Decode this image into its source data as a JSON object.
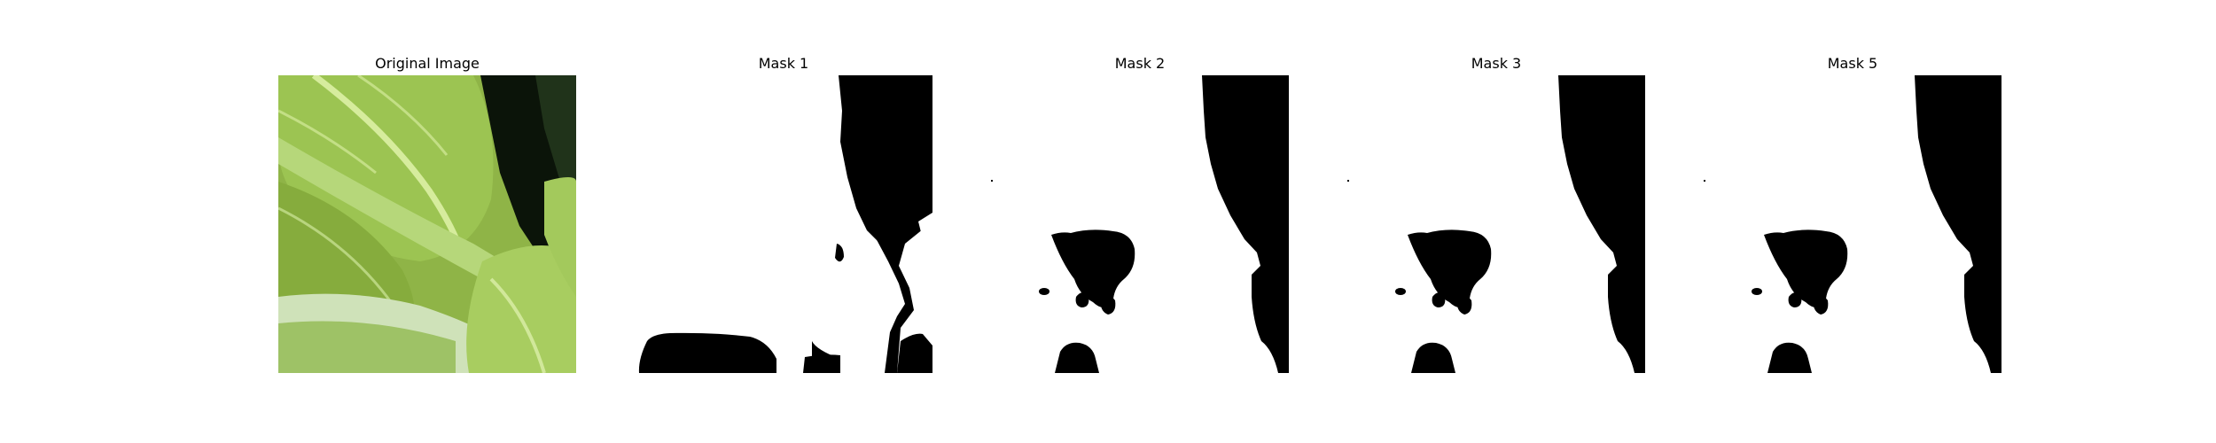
{
  "figure": {
    "panels": [
      {
        "title": "Original Image"
      },
      {
        "title": "Mask 1"
      },
      {
        "title": "Mask 2"
      },
      {
        "title": "Mask 3"
      },
      {
        "title": "Mask 5"
      }
    ]
  },
  "colors": {
    "mask_foreground": "#ffffff",
    "mask_background": "#000000",
    "leaf_light": "#b9d879",
    "leaf_mid": "#97bd4c",
    "leaf_dark": "#5f8424",
    "shadow": "#0b1409"
  }
}
